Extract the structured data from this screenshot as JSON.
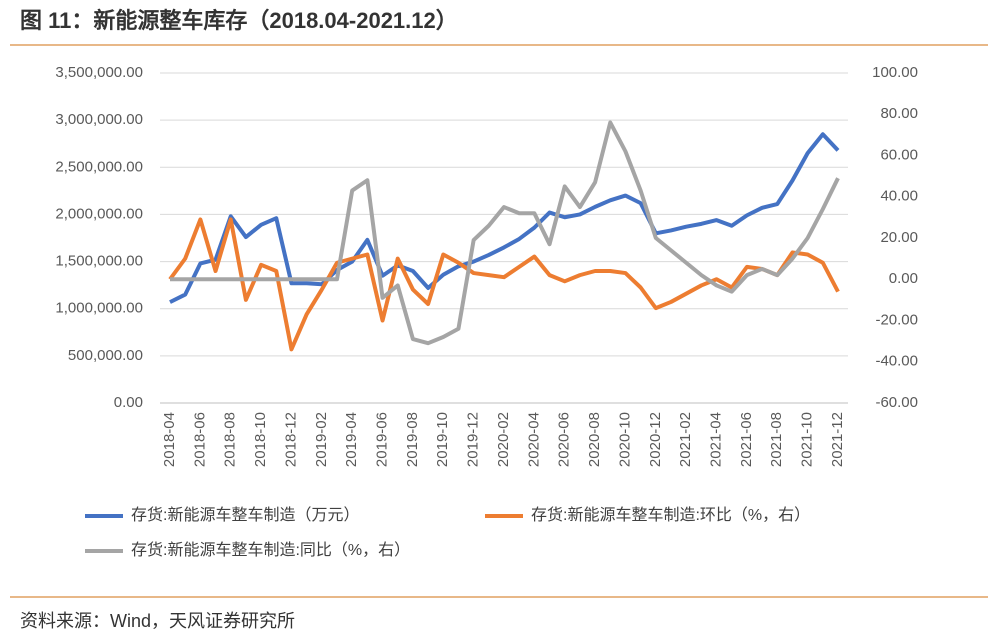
{
  "chart_data": {
    "type": "line",
    "title": "图 11：新能源整车库存（2018.04-2021.12）",
    "source": "资料来源：Wind，天风证券研究所",
    "categories": [
      "2018-04",
      null,
      "2018-06",
      null,
      "2018-08",
      null,
      "2018-10",
      null,
      "2018-12",
      null,
      "2019-02",
      null,
      "2019-04",
      null,
      "2019-06",
      null,
      "2019-08",
      null,
      "2019-10",
      null,
      "2019-12",
      null,
      "2020-02",
      null,
      "2020-04",
      null,
      "2020-06",
      null,
      "2020-08",
      null,
      "2020-10",
      null,
      "2020-12",
      null,
      "2021-02",
      null,
      "2021-04",
      null,
      "2021-06",
      null,
      "2021-08",
      null,
      "2021-10",
      null,
      "2021-12"
    ],
    "ylim": [
      0,
      3500000
    ],
    "yticks": [
      {
        "value": 0,
        "label": "0.00"
      },
      {
        "value": 500000,
        "label": "500,000.00"
      },
      {
        "value": 1000000,
        "label": "1,000,000.00"
      },
      {
        "value": 1500000,
        "label": "1,500,000.00"
      },
      {
        "value": 2000000,
        "label": "2,000,000.00"
      },
      {
        "value": 2500000,
        "label": "2,500,000.00"
      },
      {
        "value": 3000000,
        "label": "3,000,000.00"
      },
      {
        "value": 3500000,
        "label": "3,500,000.00"
      }
    ],
    "y2lim": [
      -60,
      100
    ],
    "y2ticks": [
      {
        "value": -60,
        "label": "-60.00"
      },
      {
        "value": -40,
        "label": "-40.00"
      },
      {
        "value": -20,
        "label": "-20.00"
      },
      {
        "value": 0,
        "label": "0.00"
      },
      {
        "value": 20,
        "label": "20.00"
      },
      {
        "value": 40,
        "label": "40.00"
      },
      {
        "value": 60,
        "label": "60.00"
      },
      {
        "value": 80,
        "label": "80.00"
      },
      {
        "value": 100,
        "label": "100.00"
      }
    ],
    "grid": true,
    "legend": "bottom",
    "series": [
      {
        "name": "存货:新能源车整车制造（万元）",
        "color": "#4472c4",
        "values": [
          1070000,
          1150000,
          1480000,
          1520000,
          1980000,
          1760000,
          1890000,
          1960000,
          1270000,
          1270000,
          1260000,
          1410000,
          1500000,
          1730000,
          1350000,
          1460000,
          1400000,
          1220000,
          1360000,
          1450000,
          1500000,
          1570000,
          1650000,
          1740000,
          1860000,
          2020000,
          1970000,
          2000000,
          2080000,
          2150000,
          2200000,
          2120000,
          1800000,
          1830000,
          1870000,
          1900000,
          1940000,
          1880000,
          1990000,
          2070000,
          2110000,
          2360000,
          2650000,
          2850000,
          2680000
        ]
      },
      {
        "name": "存货:新能源车整车制造:环比（%，右）",
        "color": "#ed7d31",
        "axis": "y2",
        "values": [
          0,
          10,
          29,
          4,
          29,
          -10,
          7,
          4,
          -34,
          -17,
          -5,
          8,
          10,
          12,
          -20,
          10,
          -5,
          -12,
          12,
          8,
          3,
          2,
          1,
          6,
          11,
          2,
          -1,
          2,
          4,
          4,
          3,
          -4,
          -14,
          -11,
          -7,
          -3,
          0,
          -4,
          6,
          5,
          2,
          13,
          12,
          8,
          -6
        ]
      },
      {
        "name": "存货:新能源车整车制造:同比（%，右）",
        "color": "#a5a5a5",
        "axis": "y2",
        "values": [
          0,
          0,
          0,
          0,
          0,
          0,
          0,
          0,
          0,
          0,
          0,
          0,
          43,
          48,
          -9,
          -3,
          -29,
          -31,
          -28,
          -24,
          19,
          26,
          35,
          32,
          32,
          17,
          45,
          35,
          47,
          76,
          62,
          43,
          20,
          14,
          8,
          2,
          -3,
          -6,
          2,
          5,
          2,
          10,
          20,
          34,
          49
        ]
      }
    ]
  }
}
